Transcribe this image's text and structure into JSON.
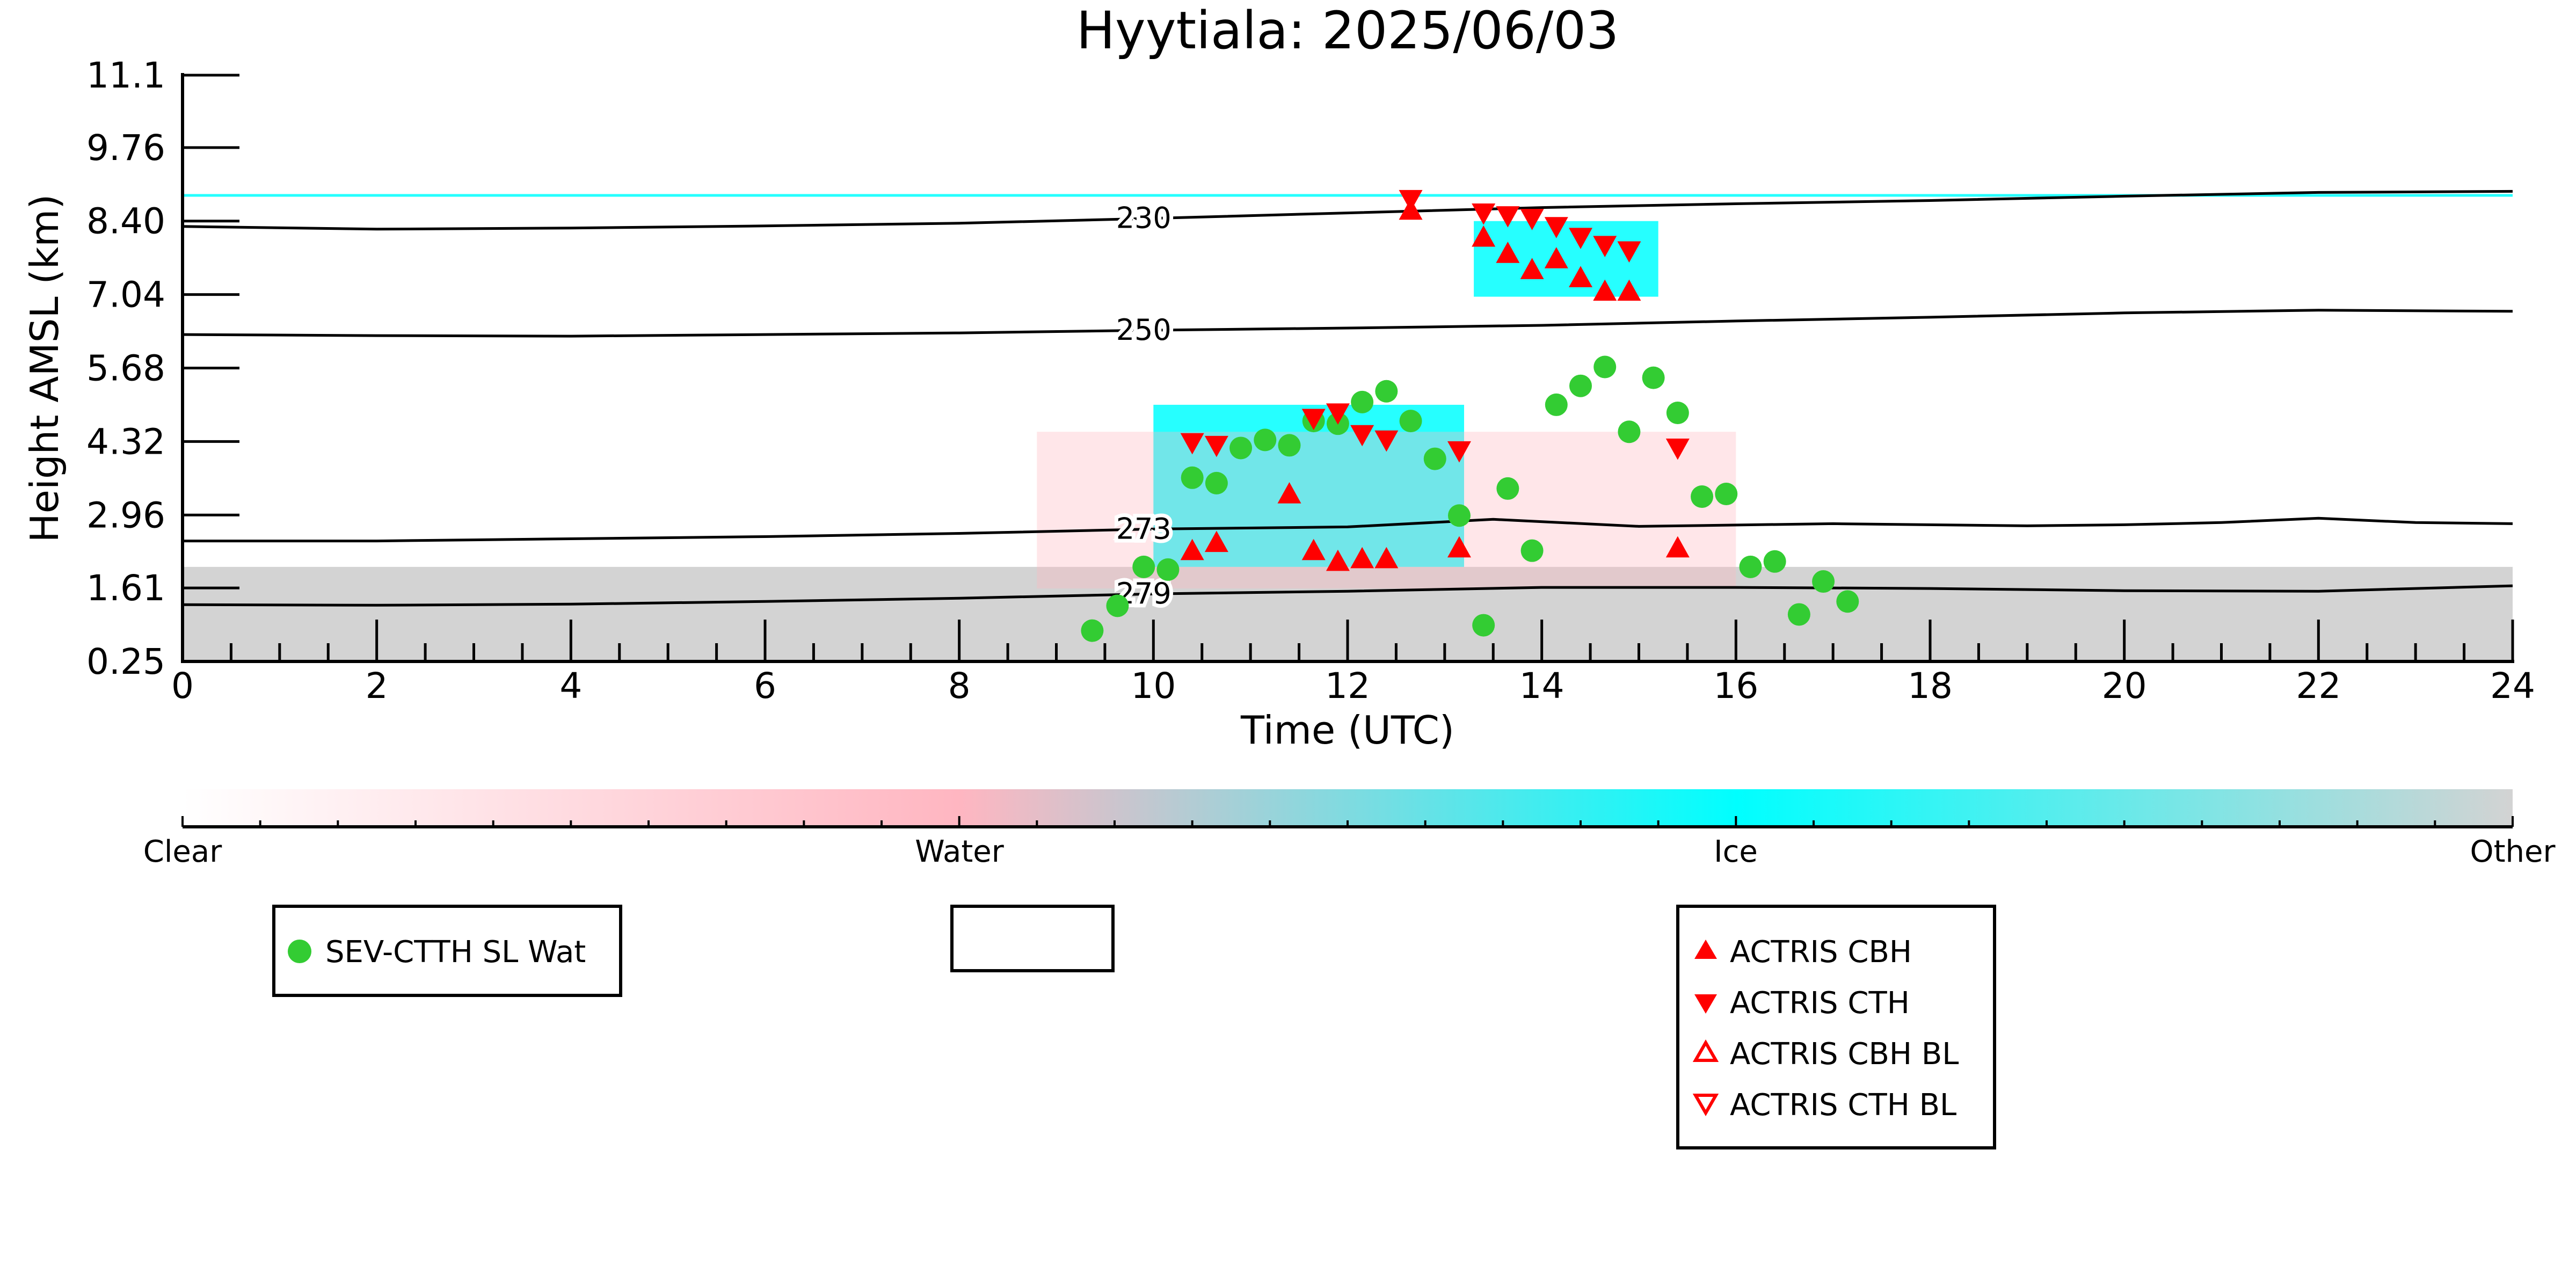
{
  "chart_data": {
    "type": "scatter",
    "title": "Hyytiala: 2025/06/03",
    "xlabel": "Time (UTC)",
    "ylabel": "Height AMSL (km)",
    "xlim": [
      0,
      24
    ],
    "ylim": [
      0.25,
      11.1
    ],
    "x_ticks": [
      "0",
      "2",
      "4",
      "6",
      "8",
      "10",
      "12",
      "14",
      "16",
      "18",
      "20",
      "22",
      "24"
    ],
    "y_ticks": [
      "0.25",
      "1.61",
      "2.96",
      "4.32",
      "5.68",
      "7.04",
      "8.40",
      "9.76",
      "11.1"
    ],
    "grid": false,
    "background_classification": {
      "colorbar_labels": [
        "Clear",
        "Water",
        "Ice",
        "Other"
      ],
      "colors": [
        "#ffffff",
        "#ffb6c1",
        "#00ffff",
        "#d3d3d3"
      ],
      "regions": [
        {
          "class": "Other",
          "x": [
            0,
            24
          ],
          "y_top_approx": 2.0
        },
        {
          "class": "Ice",
          "x": [
            10.0,
            13.2
          ],
          "y": [
            2.0,
            5.0
          ]
        },
        {
          "class": "Ice",
          "x": [
            13.3,
            15.2
          ],
          "y": [
            7.0,
            8.4
          ]
        },
        {
          "class": "Ice",
          "x": [
            0,
            24
          ],
          "y": [
            8.85,
            8.9
          ]
        },
        {
          "class": "Water",
          "x": [
            8.8,
            16.0
          ],
          "y": [
            1.6,
            4.5
          ]
        }
      ]
    },
    "temperature_contours": [
      {
        "label": "230",
        "x": [
          0,
          2,
          4,
          6,
          8,
          10,
          12,
          14,
          16,
          18,
          20,
          22,
          24
        ],
        "y": [
          8.3,
          8.25,
          8.27,
          8.31,
          8.36,
          8.45,
          8.55,
          8.65,
          8.72,
          8.78,
          8.86,
          8.93,
          8.95
        ]
      },
      {
        "label": "250",
        "x": [
          0,
          2,
          4,
          6,
          8,
          10,
          12,
          14,
          16,
          18,
          20,
          22,
          24
        ],
        "y": [
          6.3,
          6.28,
          6.27,
          6.3,
          6.33,
          6.38,
          6.42,
          6.47,
          6.55,
          6.62,
          6.7,
          6.75,
          6.73
        ]
      },
      {
        "label": "273",
        "x": [
          0,
          2,
          4,
          6,
          8,
          10,
          12,
          13.5,
          15,
          17,
          19,
          20,
          21,
          22,
          23,
          24
        ],
        "y": [
          2.48,
          2.48,
          2.52,
          2.56,
          2.62,
          2.7,
          2.74,
          2.88,
          2.75,
          2.8,
          2.76,
          2.78,
          2.82,
          2.9,
          2.82,
          2.8
        ]
      },
      {
        "label": "279",
        "x": [
          0,
          2,
          4,
          6,
          8,
          10,
          12,
          14,
          16,
          18,
          20,
          22,
          24
        ],
        "y": [
          1.3,
          1.29,
          1.31,
          1.36,
          1.42,
          1.5,
          1.55,
          1.62,
          1.62,
          1.6,
          1.56,
          1.55,
          1.65
        ]
      }
    ],
    "series": [
      {
        "name": "SEV-CTTH SL Wat",
        "marker": "circle",
        "color": "#33cc33",
        "x": [
          9.37,
          9.63,
          9.9,
          10.15,
          10.4,
          10.65,
          10.9,
          11.15,
          11.4,
          11.65,
          11.9,
          12.15,
          12.4,
          12.65,
          12.9,
          13.15,
          13.4,
          13.65,
          13.9,
          14.15,
          14.4,
          14.65,
          14.9,
          15.15,
          15.4,
          15.65,
          15.9,
          16.15,
          16.4,
          16.65,
          16.9,
          17.15
        ],
        "y": [
          0.82,
          1.28,
          2.0,
          1.95,
          3.65,
          3.55,
          4.2,
          4.35,
          4.25,
          4.7,
          4.65,
          5.05,
          5.25,
          4.7,
          4.0,
          2.95,
          0.92,
          3.45,
          2.3,
          5.0,
          5.35,
          5.7,
          4.5,
          5.5,
          4.85,
          3.3,
          3.35,
          2.0,
          2.1,
          1.12,
          1.73,
          1.36
        ]
      },
      {
        "name": "ACTRIS CBH",
        "marker": "triangle-up",
        "color": "#ff0000",
        "filled": true,
        "x": [
          10.4,
          10.65,
          11.4,
          11.65,
          11.9,
          12.15,
          12.4,
          12.65,
          13.15,
          13.4,
          13.65,
          13.9,
          14.15,
          14.4,
          14.65,
          14.9,
          15.4
        ],
        "y": [
          2.3,
          2.45,
          3.35,
          2.3,
          2.1,
          2.15,
          2.15,
          8.6,
          2.35,
          8.1,
          7.8,
          7.5,
          7.7,
          7.35,
          7.1,
          7.1,
          2.35
        ]
      },
      {
        "name": "ACTRIS CTH",
        "marker": "triangle-down",
        "color": "#ff0000",
        "filled": true,
        "x": [
          10.4,
          10.65,
          11.65,
          11.9,
          12.15,
          12.4,
          12.65,
          13.15,
          13.4,
          13.65,
          13.9,
          14.15,
          14.4,
          14.65,
          14.9,
          15.4
        ],
        "y": [
          4.3,
          4.25,
          4.75,
          4.85,
          4.45,
          4.35,
          8.8,
          4.15,
          8.55,
          8.5,
          8.45,
          8.3,
          8.1,
          7.95,
          7.85,
          4.2
        ]
      },
      {
        "name": "ACTRIS CBH BL",
        "marker": "triangle-up",
        "color": "#ff0000",
        "filled": false,
        "x": [],
        "y": []
      },
      {
        "name": "ACTRIS CTH BL",
        "marker": "triangle-down",
        "color": "#ff0000",
        "filled": false,
        "x": [],
        "y": []
      }
    ],
    "legends": [
      {
        "position": "lower-left",
        "entries": [
          "SEV-CTTH SL Wat"
        ]
      },
      {
        "position": "lower-center",
        "entries": []
      },
      {
        "position": "lower-right",
        "entries": [
          "ACTRIS CBH",
          "ACTRIS CTH",
          "ACTRIS CBH BL",
          "ACTRIS CTH BL"
        ]
      }
    ]
  }
}
